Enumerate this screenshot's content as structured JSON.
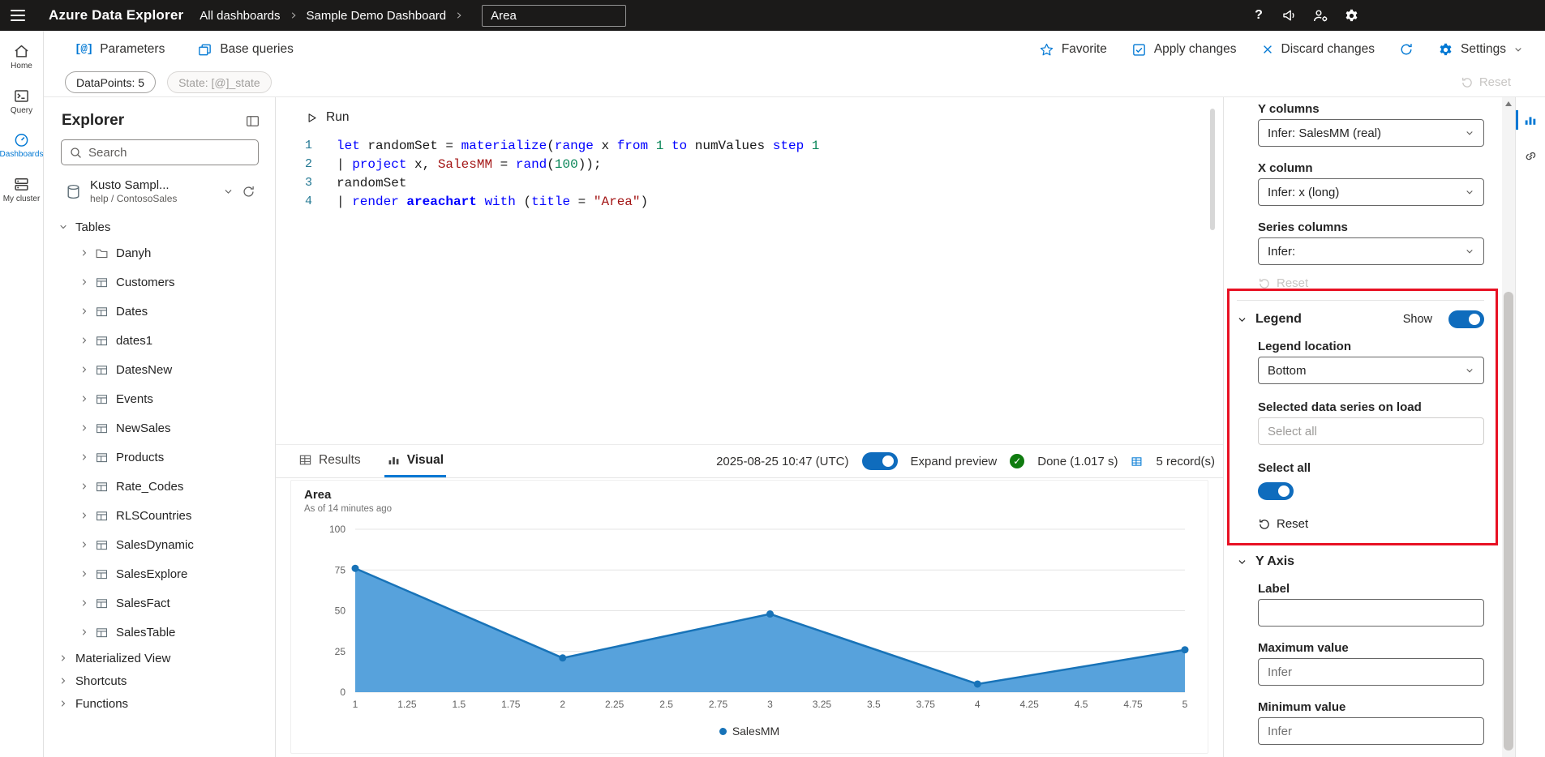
{
  "topbar": {
    "app_title": "Azure Data Explorer",
    "breadcrumb_items": [
      "All dashboards",
      "Sample Demo Dashboard"
    ],
    "tile_name_value": "Area"
  },
  "rail": {
    "items": [
      {
        "label": "Home",
        "active": false
      },
      {
        "label": "Query",
        "active": false
      },
      {
        "label": "Dashboards",
        "active": true
      },
      {
        "label": "My cluster",
        "active": false
      }
    ]
  },
  "toolbar": {
    "parameters_label": "Parameters",
    "base_queries_label": "Base queries",
    "favorite_label": "Favorite",
    "apply_changes_label": "Apply changes",
    "discard_changes_label": "Discard changes",
    "settings_label": "Settings"
  },
  "filter_bar": {
    "datapoints_pill": "DataPoints: 5",
    "state_pill": "State: [@]_state",
    "reset_label": "Reset"
  },
  "explorer": {
    "title": "Explorer",
    "search_placeholder": "Search",
    "connection_name": "Kusto Sampl...",
    "connection_subtitle": "help / ContosoSales",
    "sections": {
      "tables": "Tables",
      "materialized_view": "Materialized View",
      "shortcuts": "Shortcuts",
      "functions": "Functions"
    },
    "tables": [
      {
        "name": "Danyh",
        "icon": "folder"
      },
      {
        "name": "Customers",
        "icon": "table"
      },
      {
        "name": "Dates",
        "icon": "table"
      },
      {
        "name": "dates1",
        "icon": "table"
      },
      {
        "name": "DatesNew",
        "icon": "table"
      },
      {
        "name": "Events",
        "icon": "table"
      },
      {
        "name": "NewSales",
        "icon": "table"
      },
      {
        "name": "Products",
        "icon": "table"
      },
      {
        "name": "Rate_Codes",
        "icon": "table"
      },
      {
        "name": "RLSCountries",
        "icon": "table"
      },
      {
        "name": "SalesDynamic",
        "icon": "table"
      },
      {
        "name": "SalesExplore",
        "icon": "table"
      },
      {
        "name": "SalesFact",
        "icon": "table"
      },
      {
        "name": "SalesTable",
        "icon": "table"
      }
    ]
  },
  "editor": {
    "run_label": "Run",
    "lines": [
      [
        {
          "t": "let",
          "c": "kw"
        },
        {
          "t": " randomSet = ",
          "c": "pl"
        },
        {
          "t": "materialize",
          "c": "fn"
        },
        {
          "t": "(",
          "c": "pl"
        },
        {
          "t": "range",
          "c": "kw"
        },
        {
          "t": " x ",
          "c": "pl"
        },
        {
          "t": "from",
          "c": "kw"
        },
        {
          "t": " ",
          "c": "pl"
        },
        {
          "t": "1",
          "c": "num"
        },
        {
          "t": " ",
          "c": "pl"
        },
        {
          "t": "to",
          "c": "kw"
        },
        {
          "t": " numValues ",
          "c": "pl"
        },
        {
          "t": "step",
          "c": "kw"
        },
        {
          "t": " ",
          "c": "pl"
        },
        {
          "t": "1",
          "c": "num"
        }
      ],
      [
        {
          "t": "| ",
          "c": "pl"
        },
        {
          "t": "project",
          "c": "kw"
        },
        {
          "t": " x, ",
          "c": "pl"
        },
        {
          "t": "SalesMM",
          "c": "col"
        },
        {
          "t": " = ",
          "c": "pl"
        },
        {
          "t": "rand",
          "c": "fn"
        },
        {
          "t": "(",
          "c": "pl"
        },
        {
          "t": "100",
          "c": "num"
        },
        {
          "t": "));",
          "c": "pl"
        }
      ],
      [
        {
          "t": "randomSet",
          "c": "pl"
        }
      ],
      [
        {
          "t": "| ",
          "c": "pl"
        },
        {
          "t": "render",
          "c": "kw"
        },
        {
          "t": " ",
          "c": "pl"
        },
        {
          "t": "areachart",
          "c": "kwb"
        },
        {
          "t": " ",
          "c": "pl"
        },
        {
          "t": "with",
          "c": "kw"
        },
        {
          "t": " (",
          "c": "pl"
        },
        {
          "t": "title",
          "c": "kw"
        },
        {
          "t": " = ",
          "c": "pl"
        },
        {
          "t": "\"Area\"",
          "c": "str"
        },
        {
          "t": ")",
          "c": "pl"
        }
      ]
    ]
  },
  "results_bar": {
    "results_tab": "Results",
    "visual_tab": "Visual",
    "active_tab": "Visual",
    "timestamp": "2025-08-25 10:47 (UTC)",
    "expand_preview_label": "Expand preview",
    "expand_preview_on": true,
    "status_text": "Done (1.017 s)",
    "records_text": "5 record(s)"
  },
  "chart_data": {
    "type": "area",
    "title": "Area",
    "subtitle": "As of 14 minutes ago",
    "x": [
      1,
      2,
      3,
      4,
      5
    ],
    "series": [
      {
        "name": "SalesMM",
        "color": "#1873b8",
        "fill": "#57a2dc",
        "y": [
          76,
          21,
          48,
          5,
          26
        ]
      }
    ],
    "xlim": [
      1,
      5
    ],
    "ylim": [
      0,
      100
    ],
    "y_ticks": [
      0,
      25,
      50,
      75,
      100
    ],
    "x_ticks": [
      1,
      1.25,
      1.5,
      1.75,
      2,
      2.25,
      2.5,
      2.75,
      3,
      3.25,
      3.5,
      3.75,
      4,
      4.25,
      4.5,
      4.75,
      5
    ],
    "x_tick_labels": [
      "1",
      "1.25",
      "1.5",
      "1.75",
      "2",
      "2.25",
      "2.5",
      "2.75",
      "3",
      "3.25",
      "3.5",
      "3.75",
      "4",
      "4.25",
      "4.5",
      "4.75",
      "5"
    ],
    "legend": {
      "position": "bottom",
      "entries": [
        "SalesMM"
      ]
    },
    "grid": "horizontal"
  },
  "visual_panel": {
    "y_columns_label": "Y columns",
    "y_columns_value": "Infer: SalesMM (real)",
    "x_column_label": "X column",
    "x_column_value": "Infer: x (long)",
    "series_columns_label": "Series columns",
    "series_columns_value": "Infer:",
    "reset_top_label": "Reset",
    "legend": {
      "header": "Legend",
      "show_label": "Show",
      "show_on": true,
      "location_label": "Legend location",
      "location_value": "Bottom",
      "selected_series_label": "Selected data series on load",
      "selected_series_value": "Select all",
      "select_all_label": "Select all",
      "select_all_on": true,
      "reset_label": "Reset"
    },
    "y_axis": {
      "header": "Y Axis",
      "label_label": "Label",
      "label_value": "",
      "max_label": "Maximum value",
      "max_placeholder": "Infer",
      "min_label": "Minimum value",
      "min_placeholder": "Infer"
    }
  },
  "colors": {
    "accent": "#0078d4",
    "topbar_bg": "#1b1a19",
    "toggle_on": "#0f6cbd",
    "success": "#0f7b0f",
    "annotation_red": "#e81123"
  },
  "icons": {
    "hamburger": "three-bars",
    "help": "?",
    "feedback": "megaphone",
    "account_settings": "person-gear",
    "settings": "gear",
    "search": "magnifier",
    "refresh": "circular-arrow",
    "favorite": "star-outline",
    "run": "play-triangle",
    "table": "grid",
    "folder": "folder",
    "database": "cylinder",
    "visual_tool": "bar-chart",
    "link_tool": "chain-link"
  }
}
